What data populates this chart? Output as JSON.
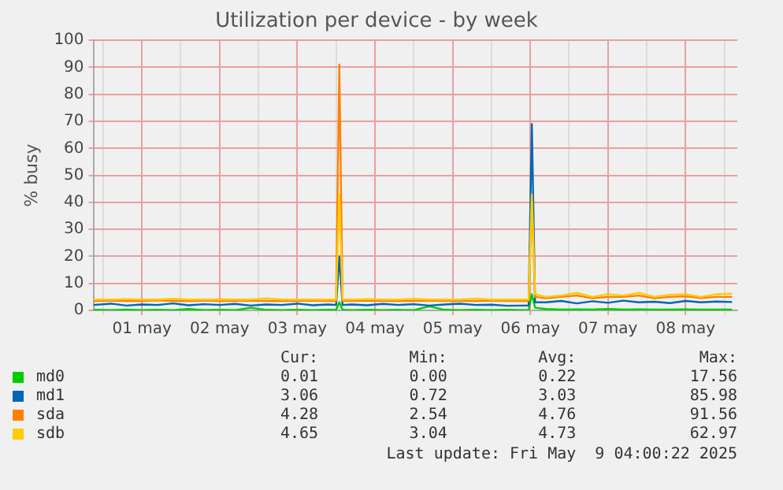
{
  "chart_data": {
    "type": "line",
    "title": "Utilization per device - by week",
    "ylabel": "% busy",
    "x": [
      "2025-04-30T21:00",
      "2025-05-01T02:24",
      "2025-05-01T07:12",
      "2025-05-01T12:00",
      "2025-05-01T16:48",
      "2025-05-01T21:36",
      "2025-05-02T02:24",
      "2025-05-02T07:12",
      "2025-05-02T12:00",
      "2025-05-02T16:48",
      "2025-05-02T21:36",
      "2025-05-03T02:24",
      "2025-05-03T07:12",
      "2025-05-03T12:00",
      "2025-05-03T16:48",
      "2025-05-03T21:36",
      "2025-05-04T00:00",
      "2025-05-04T01:00",
      "2025-05-04T02:00",
      "2025-05-04T04:48",
      "2025-05-04T09:36",
      "2025-05-04T14:24",
      "2025-05-04T19:12",
      "2025-05-05T00:00",
      "2025-05-05T04:48",
      "2025-05-05T09:36",
      "2025-05-05T14:24",
      "2025-05-05T19:12",
      "2025-05-06T00:00",
      "2025-05-06T04:48",
      "2025-05-06T09:36",
      "2025-05-06T11:30",
      "2025-05-06T12:30",
      "2025-05-06T13:30",
      "2025-05-06T16:48",
      "2025-05-06T21:36",
      "2025-05-07T02:24",
      "2025-05-07T07:12",
      "2025-05-07T12:00",
      "2025-05-07T16:48",
      "2025-05-07T21:36",
      "2025-05-08T02:24",
      "2025-05-08T07:12",
      "2025-05-08T12:00",
      "2025-05-08T16:48",
      "2025-05-08T21:36",
      "2025-05-09T02:24"
    ],
    "series": [
      {
        "name": "md0",
        "color": "#00cc00",
        "values": [
          0.2,
          0.1,
          0.3,
          0.1,
          0.2,
          0.1,
          0.5,
          0.1,
          0.2,
          0.1,
          1,
          0.2,
          0.1,
          0.2,
          0.1,
          0.2,
          0.2,
          3,
          0.2,
          0.1,
          0.2,
          0.1,
          0.2,
          0.1,
          1.5,
          0.2,
          0.1,
          0.2,
          0.1,
          0.2,
          0.1,
          0.1,
          6,
          1,
          0.5,
          0.3,
          0.4,
          0.3,
          0.5,
          0.3,
          0.4,
          0.3,
          0.3,
          0.4,
          0.3,
          0.3,
          0.3
        ]
      },
      {
        "name": "md1",
        "color": "#0066b3",
        "values": [
          2,
          2.5,
          1.8,
          2.2,
          2,
          2.6,
          1.9,
          2.3,
          2,
          2.4,
          1.8,
          2.2,
          2,
          2.5,
          1.9,
          2.2,
          2,
          20,
          2,
          2.2,
          1.9,
          2.4,
          2,
          2.3,
          1.8,
          2.2,
          2.5,
          2,
          2.1,
          1.7,
          1.8,
          1.8,
          69,
          3,
          3,
          3.5,
          2.6,
          3.4,
          2.8,
          3.6,
          3,
          3.2,
          2.7,
          3.5,
          3,
          3.3,
          3.1
        ]
      },
      {
        "name": "sda",
        "color": "#ff8000",
        "values": [
          3.5,
          3.6,
          3.5,
          3.5,
          3.7,
          3.5,
          3.5,
          3.6,
          3.5,
          3.5,
          3.6,
          3.5,
          3.5,
          3.5,
          3.6,
          3.5,
          3.5,
          91,
          3.5,
          3.5,
          3.6,
          3.5,
          3.5,
          3.5,
          3.6,
          3.5,
          3.5,
          3.5,
          3.6,
          3.5,
          3.5,
          3.5,
          40,
          5,
          4.5,
          5,
          5.5,
          4.5,
          5,
          5,
          5.5,
          4.5,
          5,
          5.2,
          4.6,
          5,
          5
        ]
      },
      {
        "name": "sdb",
        "color": "#ffcc00",
        "values": [
          4,
          4,
          4.2,
          4,
          4,
          4.3,
          4,
          4,
          4.1,
          4,
          4,
          4.5,
          4,
          4,
          4,
          4,
          4,
          43,
          4,
          4,
          4.2,
          4,
          4,
          4.3,
          4,
          4,
          4,
          4.4,
          4,
          4,
          4,
          4,
          43,
          6,
          5,
          5.5,
          6.5,
          5,
          6,
          5.5,
          6.5,
          5,
          5.8,
          6,
          5,
          6,
          6.2
        ]
      }
    ],
    "xlim": [
      "2025-04-30T21:00",
      "2025-05-09T04:00"
    ],
    "xticks": [
      {
        "value": "2025-05-01T00:00",
        "label": null
      },
      {
        "value": "2025-05-01T12:00",
        "label": "01 may"
      },
      {
        "value": "2025-05-02T00:00",
        "label": null
      },
      {
        "value": "2025-05-02T12:00",
        "label": "02 may"
      },
      {
        "value": "2025-05-03T00:00",
        "label": null
      },
      {
        "value": "2025-05-03T12:00",
        "label": "03 may"
      },
      {
        "value": "2025-05-04T00:00",
        "label": null
      },
      {
        "value": "2025-05-04T12:00",
        "label": "04 may"
      },
      {
        "value": "2025-05-05T00:00",
        "label": null
      },
      {
        "value": "2025-05-05T12:00",
        "label": "05 may"
      },
      {
        "value": "2025-05-06T00:00",
        "label": null
      },
      {
        "value": "2025-05-06T12:00",
        "label": "06 may"
      },
      {
        "value": "2025-05-07T00:00",
        "label": null
      },
      {
        "value": "2025-05-07T12:00",
        "label": "07 may"
      },
      {
        "value": "2025-05-08T00:00",
        "label": null
      },
      {
        "value": "2025-05-08T12:00",
        "label": "08 may"
      },
      {
        "value": "2025-05-09T00:00",
        "label": null
      }
    ],
    "ylim": [
      0,
      100
    ],
    "yticks": [
      0,
      10,
      20,
      30,
      40,
      50,
      60,
      70,
      80,
      90,
      100
    ],
    "grid": true,
    "legend": "bottom",
    "marker": "none",
    "line_style": "solid",
    "annotations": [
      "Cur:",
      "Min:",
      "Avg:",
      "Max:",
      "0.01",
      "0.00",
      "0.22",
      "17.56",
      "3.06",
      "0.72",
      "3.03",
      "85.98",
      "4.28",
      "2.54",
      "4.76",
      "91.56",
      "4.65",
      "3.04",
      "4.73",
      "62.97",
      "Last update: Fri May  9 04:00:22 2025"
    ]
  }
}
